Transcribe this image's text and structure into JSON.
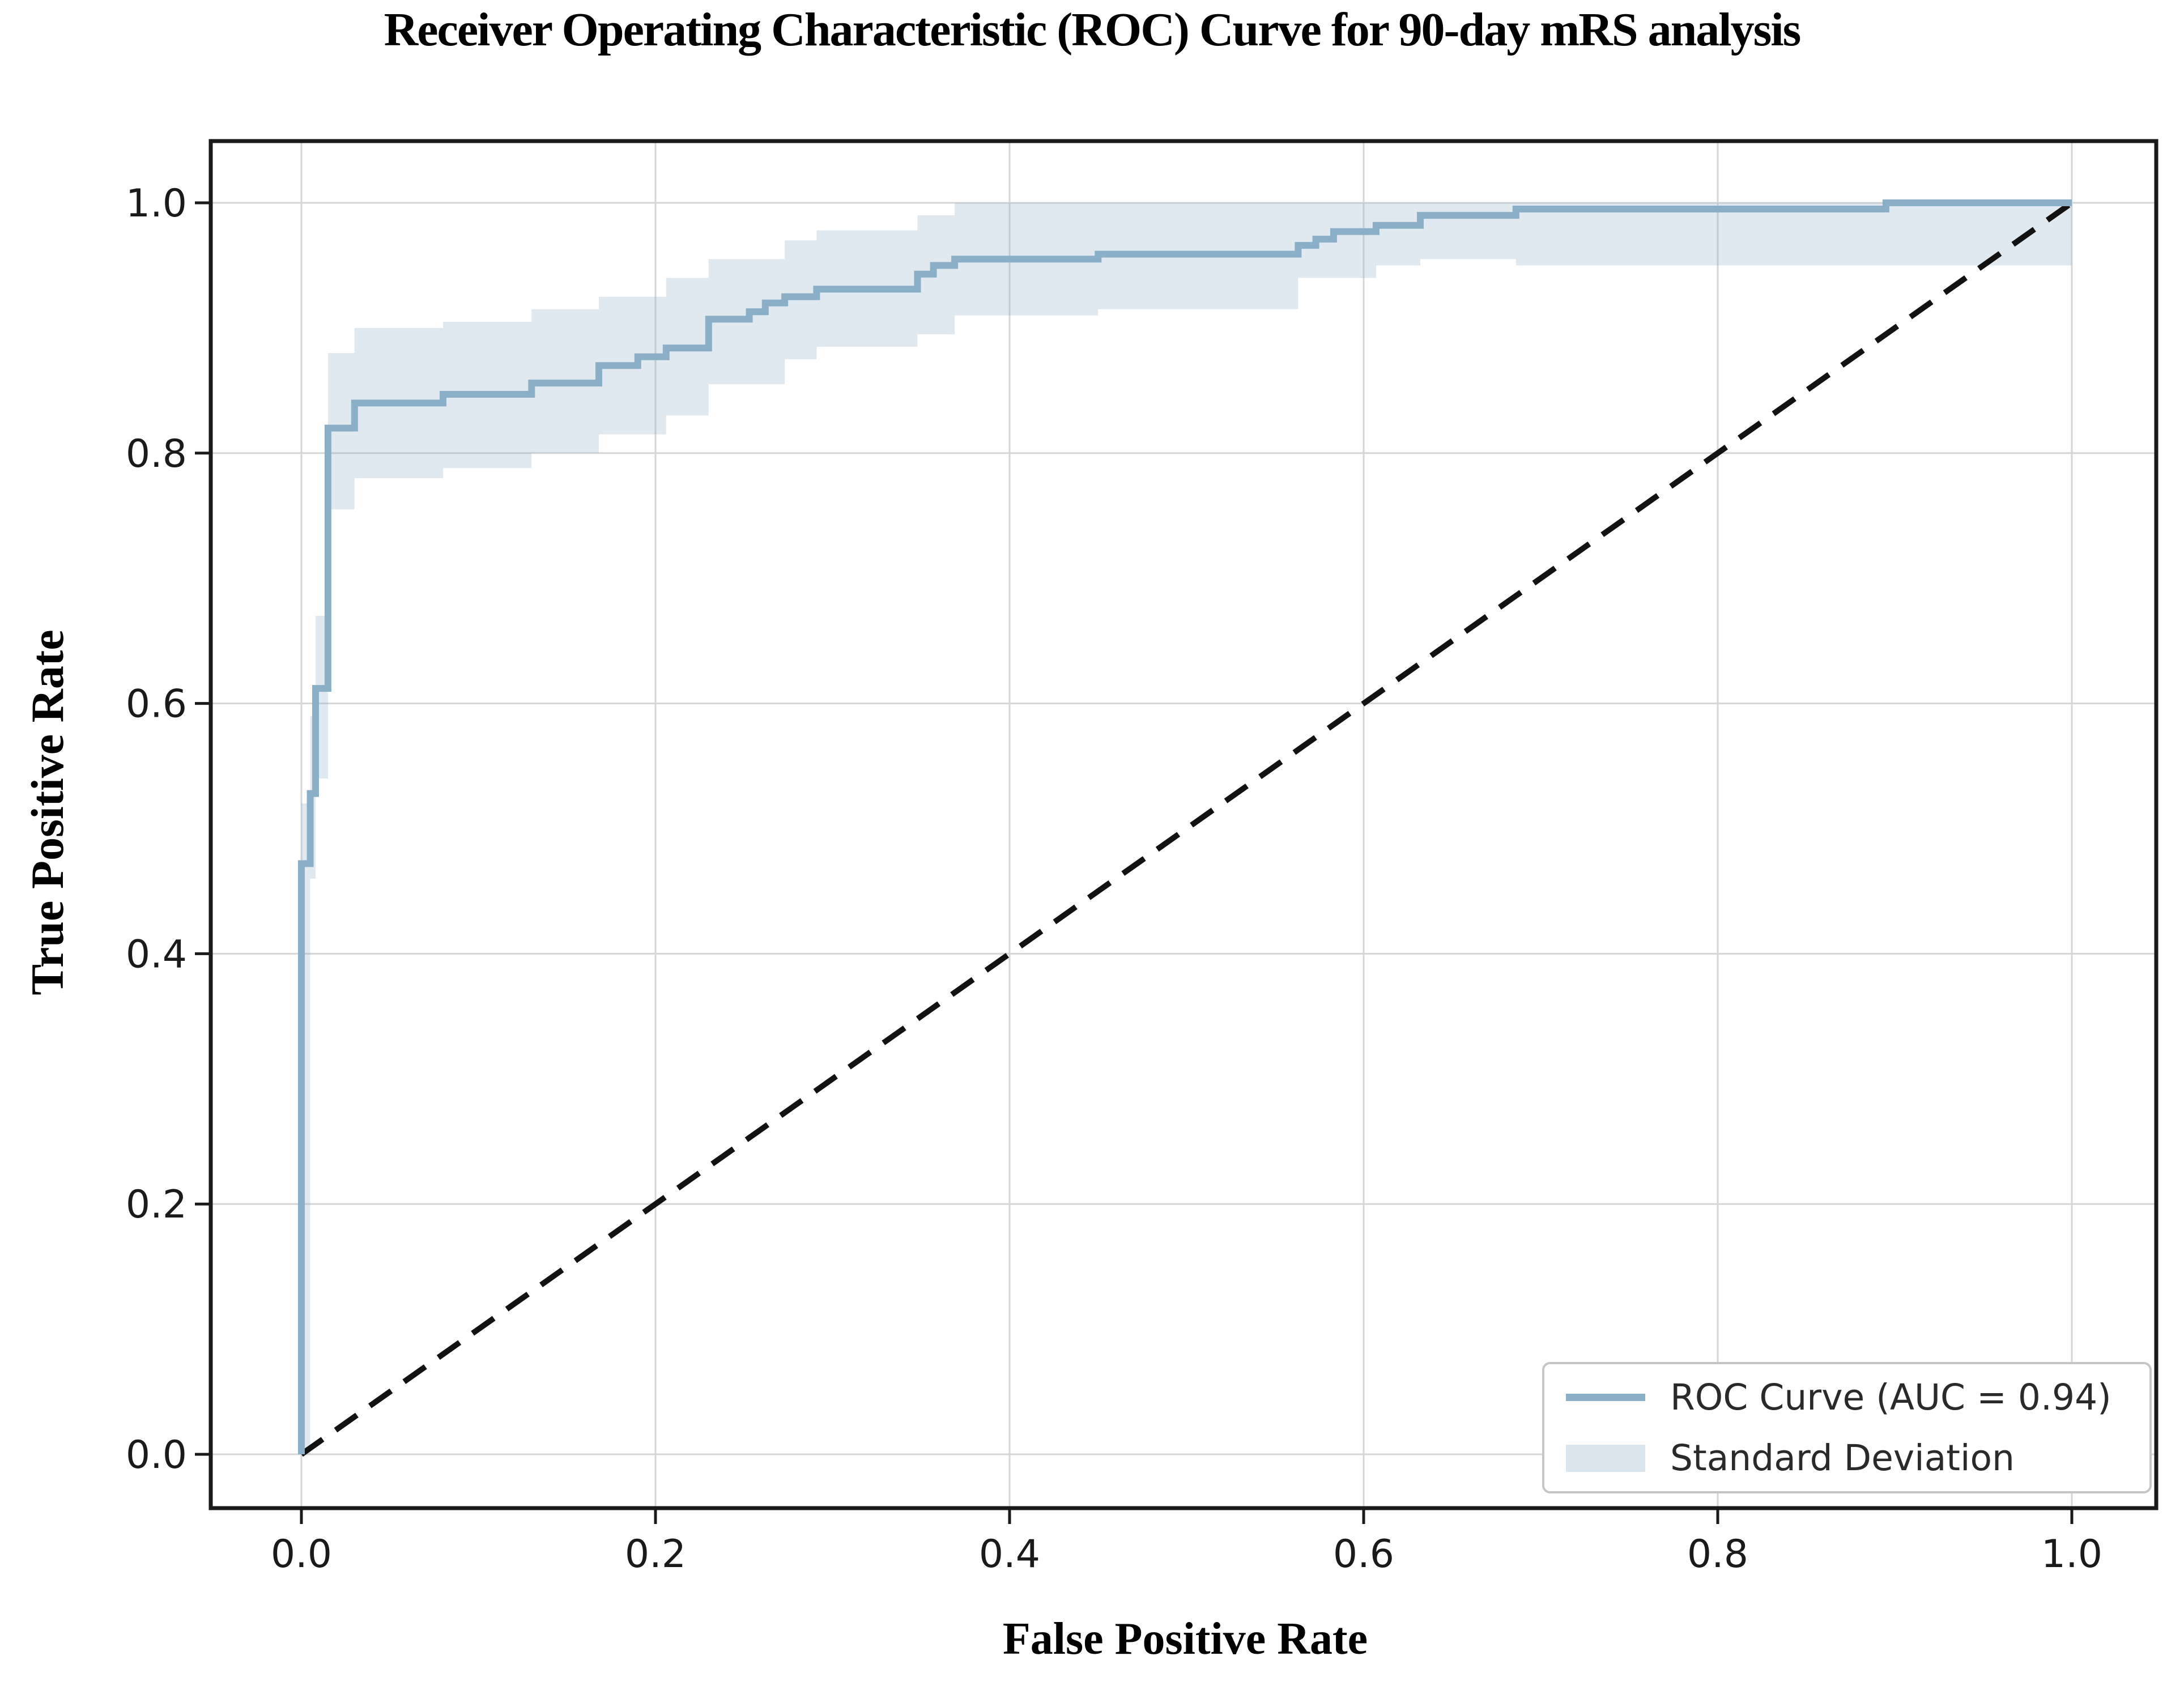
{
  "figure": {
    "title": "Receiver Operating Characteristic (ROC) Curve for 90-day mRS analysis"
  },
  "legend": {
    "items": [
      {
        "label": "ROC Curve (AUC = 0.94)",
        "swatch": "line"
      },
      {
        "label": "Standard Deviation",
        "swatch": "patch"
      }
    ],
    "position": "lower right"
  },
  "colors": {
    "roc_line": "#8bafc7",
    "band_fill": "#8bafc7",
    "band_opacity": 0.27,
    "diagonal": "#121212",
    "grid": "#d6d6d6",
    "spine": "#1a1a1a",
    "tick_text": "#1a1a1a",
    "background": "#ffffff"
  },
  "chart_data": {
    "type": "line",
    "subtype": "roc-step-curve",
    "title": "Receiver Operating Characteristic (ROC) Curve for 90-day mRS analysis",
    "xlabel": "False Positive Rate",
    "ylabel": "True Positive Rate",
    "xlim": [
      -0.05,
      1.05
    ],
    "ylim": [
      -0.045,
      1.05
    ],
    "x_ticks": {
      "values": [
        0.0,
        0.2,
        0.4,
        0.6,
        0.8,
        1.0
      ],
      "labels": [
        "0.0",
        "0.2",
        "0.4",
        "0.6",
        "0.8",
        "1.0"
      ]
    },
    "y_ticks": {
      "values": [
        0.0,
        0.2,
        0.4,
        0.6,
        0.8,
        1.0
      ],
      "labels": [
        "0.0",
        "0.2",
        "0.4",
        "0.6",
        "0.8",
        "1.0"
      ]
    },
    "grid": true,
    "legend_position": "lower right",
    "auc": 0.94,
    "series": [
      {
        "name": "ROC Curve (AUC = 0.94)",
        "type": "step-line",
        "points": [
          [
            0.0,
            0.0
          ],
          [
            0.0,
            0.472
          ],
          [
            0.005,
            0.472
          ],
          [
            0.005,
            0.528
          ],
          [
            0.008,
            0.528
          ],
          [
            0.008,
            0.612
          ],
          [
            0.015,
            0.612
          ],
          [
            0.015,
            0.82
          ],
          [
            0.03,
            0.82
          ],
          [
            0.03,
            0.84
          ],
          [
            0.08,
            0.84
          ],
          [
            0.08,
            0.847
          ],
          [
            0.13,
            0.847
          ],
          [
            0.13,
            0.856
          ],
          [
            0.168,
            0.856
          ],
          [
            0.168,
            0.87
          ],
          [
            0.19,
            0.87
          ],
          [
            0.19,
            0.877
          ],
          [
            0.206,
            0.877
          ],
          [
            0.206,
            0.884
          ],
          [
            0.23,
            0.884
          ],
          [
            0.23,
            0.907
          ],
          [
            0.253,
            0.907
          ],
          [
            0.253,
            0.913
          ],
          [
            0.262,
            0.913
          ],
          [
            0.262,
            0.92
          ],
          [
            0.273,
            0.92
          ],
          [
            0.273,
            0.925
          ],
          [
            0.291,
            0.925
          ],
          [
            0.291,
            0.931
          ],
          [
            0.348,
            0.931
          ],
          [
            0.348,
            0.943
          ],
          [
            0.357,
            0.943
          ],
          [
            0.357,
            0.95
          ],
          [
            0.369,
            0.95
          ],
          [
            0.369,
            0.955
          ],
          [
            0.45,
            0.955
          ],
          [
            0.45,
            0.959
          ],
          [
            0.563,
            0.959
          ],
          [
            0.563,
            0.966
          ],
          [
            0.573,
            0.966
          ],
          [
            0.573,
            0.971
          ],
          [
            0.583,
            0.971
          ],
          [
            0.583,
            0.977
          ],
          [
            0.607,
            0.977
          ],
          [
            0.607,
            0.982
          ],
          [
            0.632,
            0.982
          ],
          [
            0.632,
            0.99
          ],
          [
            0.686,
            0.99
          ],
          [
            0.686,
            0.995
          ],
          [
            0.895,
            0.995
          ],
          [
            0.895,
            1.0
          ],
          [
            1.0,
            1.0
          ]
        ]
      },
      {
        "name": "Standard Deviation",
        "type": "band",
        "x": [
          0.0,
          0.005,
          0.008,
          0.015,
          0.03,
          0.08,
          0.13,
          0.168,
          0.206,
          0.23,
          0.273,
          0.291,
          0.348,
          0.369,
          0.45,
          0.563,
          0.607,
          0.632,
          0.686,
          0.895,
          1.0
        ],
        "upper": [
          0.52,
          0.59,
          0.67,
          0.88,
          0.9,
          0.905,
          0.915,
          0.925,
          0.94,
          0.955,
          0.97,
          0.978,
          0.99,
          1.0,
          1.0,
          1.0,
          1.0,
          1.0,
          1.0,
          1.0,
          1.0
        ],
        "lower": [
          0.0,
          0.46,
          0.54,
          0.755,
          0.78,
          0.788,
          0.8,
          0.815,
          0.83,
          0.855,
          0.875,
          0.885,
          0.895,
          0.91,
          0.915,
          0.94,
          0.95,
          0.955,
          0.95,
          0.95,
          1.0
        ]
      },
      {
        "name": "Chance diagonal",
        "type": "dashed-line",
        "points": [
          [
            0.0,
            0.0
          ],
          [
            1.0,
            1.0
          ]
        ]
      }
    ]
  }
}
